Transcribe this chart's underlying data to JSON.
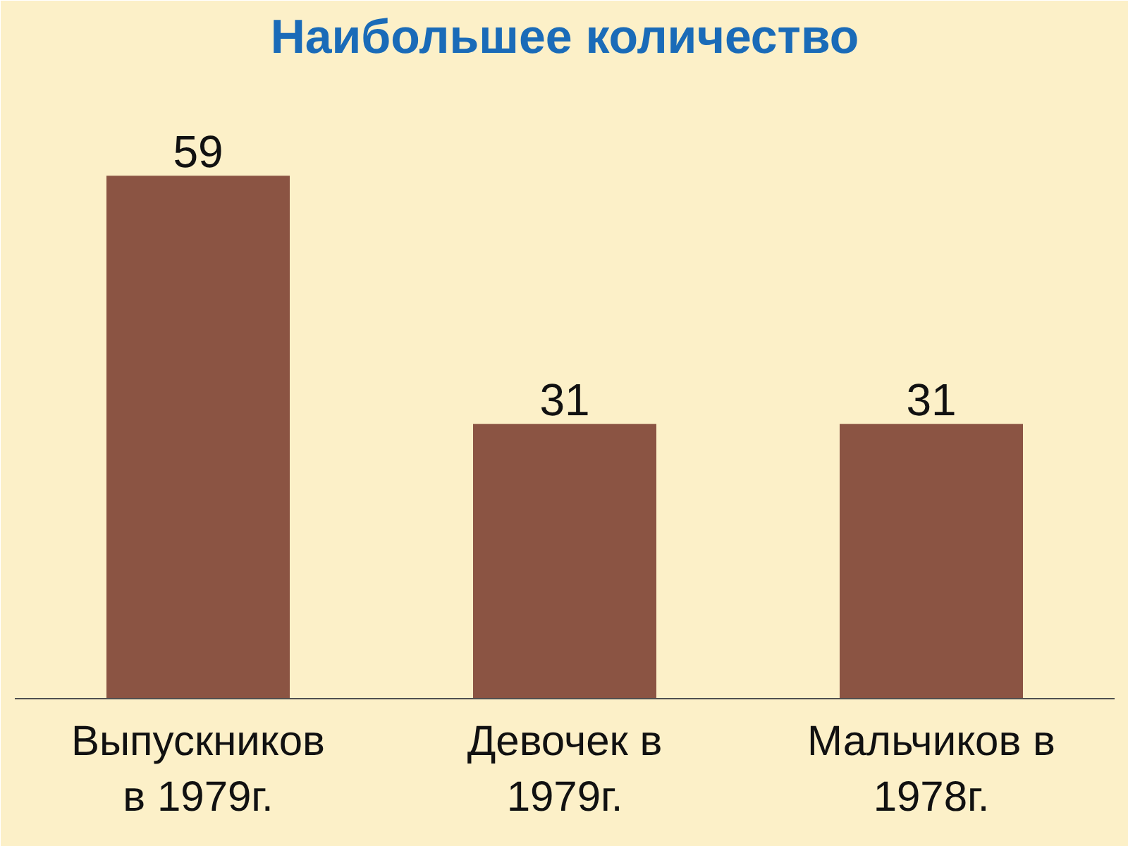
{
  "chart_data": {
    "type": "bar",
    "title": "Наибольшее количество",
    "categories": [
      "Выпускников\nв 1979г.",
      "Девочек в\n1979г.",
      "Мальчиков в\n1978г."
    ],
    "values": [
      59,
      31,
      31
    ],
    "color": "#8b5443",
    "data_labels": true
  }
}
